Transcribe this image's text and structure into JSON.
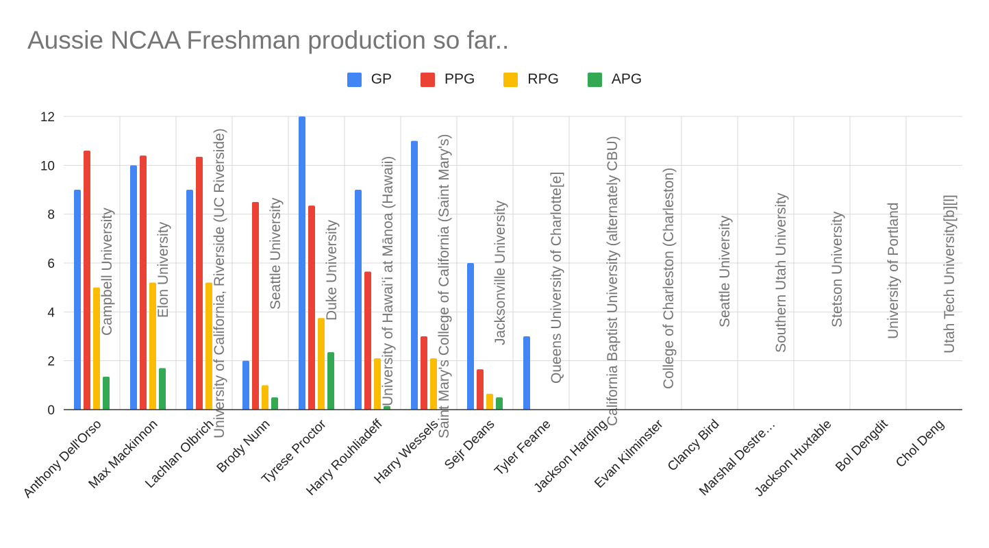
{
  "chart_data": {
    "type": "bar",
    "title": "Aussie NCAA Freshman production so far..",
    "xlabel": "",
    "ylabel": "",
    "ylim": [
      0,
      12
    ],
    "yticks": [
      "0",
      "2",
      "4",
      "6",
      "8",
      "10",
      "12"
    ],
    "grid": true,
    "legend_position": "top",
    "categories": [
      "Anthony Dell'Orso",
      "Max Mackinnon",
      "Lachlan Olbrich",
      "Brody Nunn",
      "Tyrese Proctor",
      "Harry Rouhliadeff",
      "Harry Wessels",
      "Sejr Deans",
      "Tyler Fearne",
      "Jackson Harding",
      "Evan Kilminster",
      "Clancy Bird",
      "Marshal Destre…",
      "Jackson Huxtable",
      "Bol Dengdit",
      "Chol Deng"
    ],
    "series": [
      {
        "name": "GP",
        "color": "#4285f4",
        "values": [
          9,
          10,
          9,
          2,
          12,
          9,
          11,
          6,
          3,
          0,
          0,
          0,
          0,
          0,
          0,
          0
        ]
      },
      {
        "name": "PPG",
        "color": "#ea4335",
        "values": [
          10.6,
          10.4,
          10.35,
          8.5,
          8.35,
          5.65,
          3.0,
          1.65,
          0,
          0,
          0,
          0,
          0,
          0,
          0,
          0
        ]
      },
      {
        "name": "RPG",
        "color": "#fbbc04",
        "values": [
          5.0,
          5.2,
          5.2,
          1.0,
          3.75,
          2.1,
          2.1,
          0.65,
          0,
          0,
          0,
          0,
          0,
          0,
          0,
          0
        ]
      },
      {
        "name": "APG",
        "color": "#34a853",
        "values": [
          1.35,
          1.7,
          0,
          0.5,
          2.35,
          0.15,
          0,
          0.5,
          0,
          0,
          0,
          0,
          0,
          0,
          0,
          0
        ]
      }
    ],
    "annotations": [
      "Campbell University",
      "Elon University",
      "University of California, Riverside (UC Riverside)",
      "Seattle University",
      "Duke University",
      "University of Hawaiʻi at Mānoa (Hawaii)",
      "Saint Mary's College of California (Saint Mary's)",
      "Jacksonville University",
      "Queens University of Charlotte[e]",
      "California Baptist University (alternately CBU)",
      "College of Charleston (Charleston)",
      "Seattle University",
      "Southern Utah University",
      "Stetson University",
      "University of Portland",
      "Utah Tech University[b][l]"
    ]
  }
}
